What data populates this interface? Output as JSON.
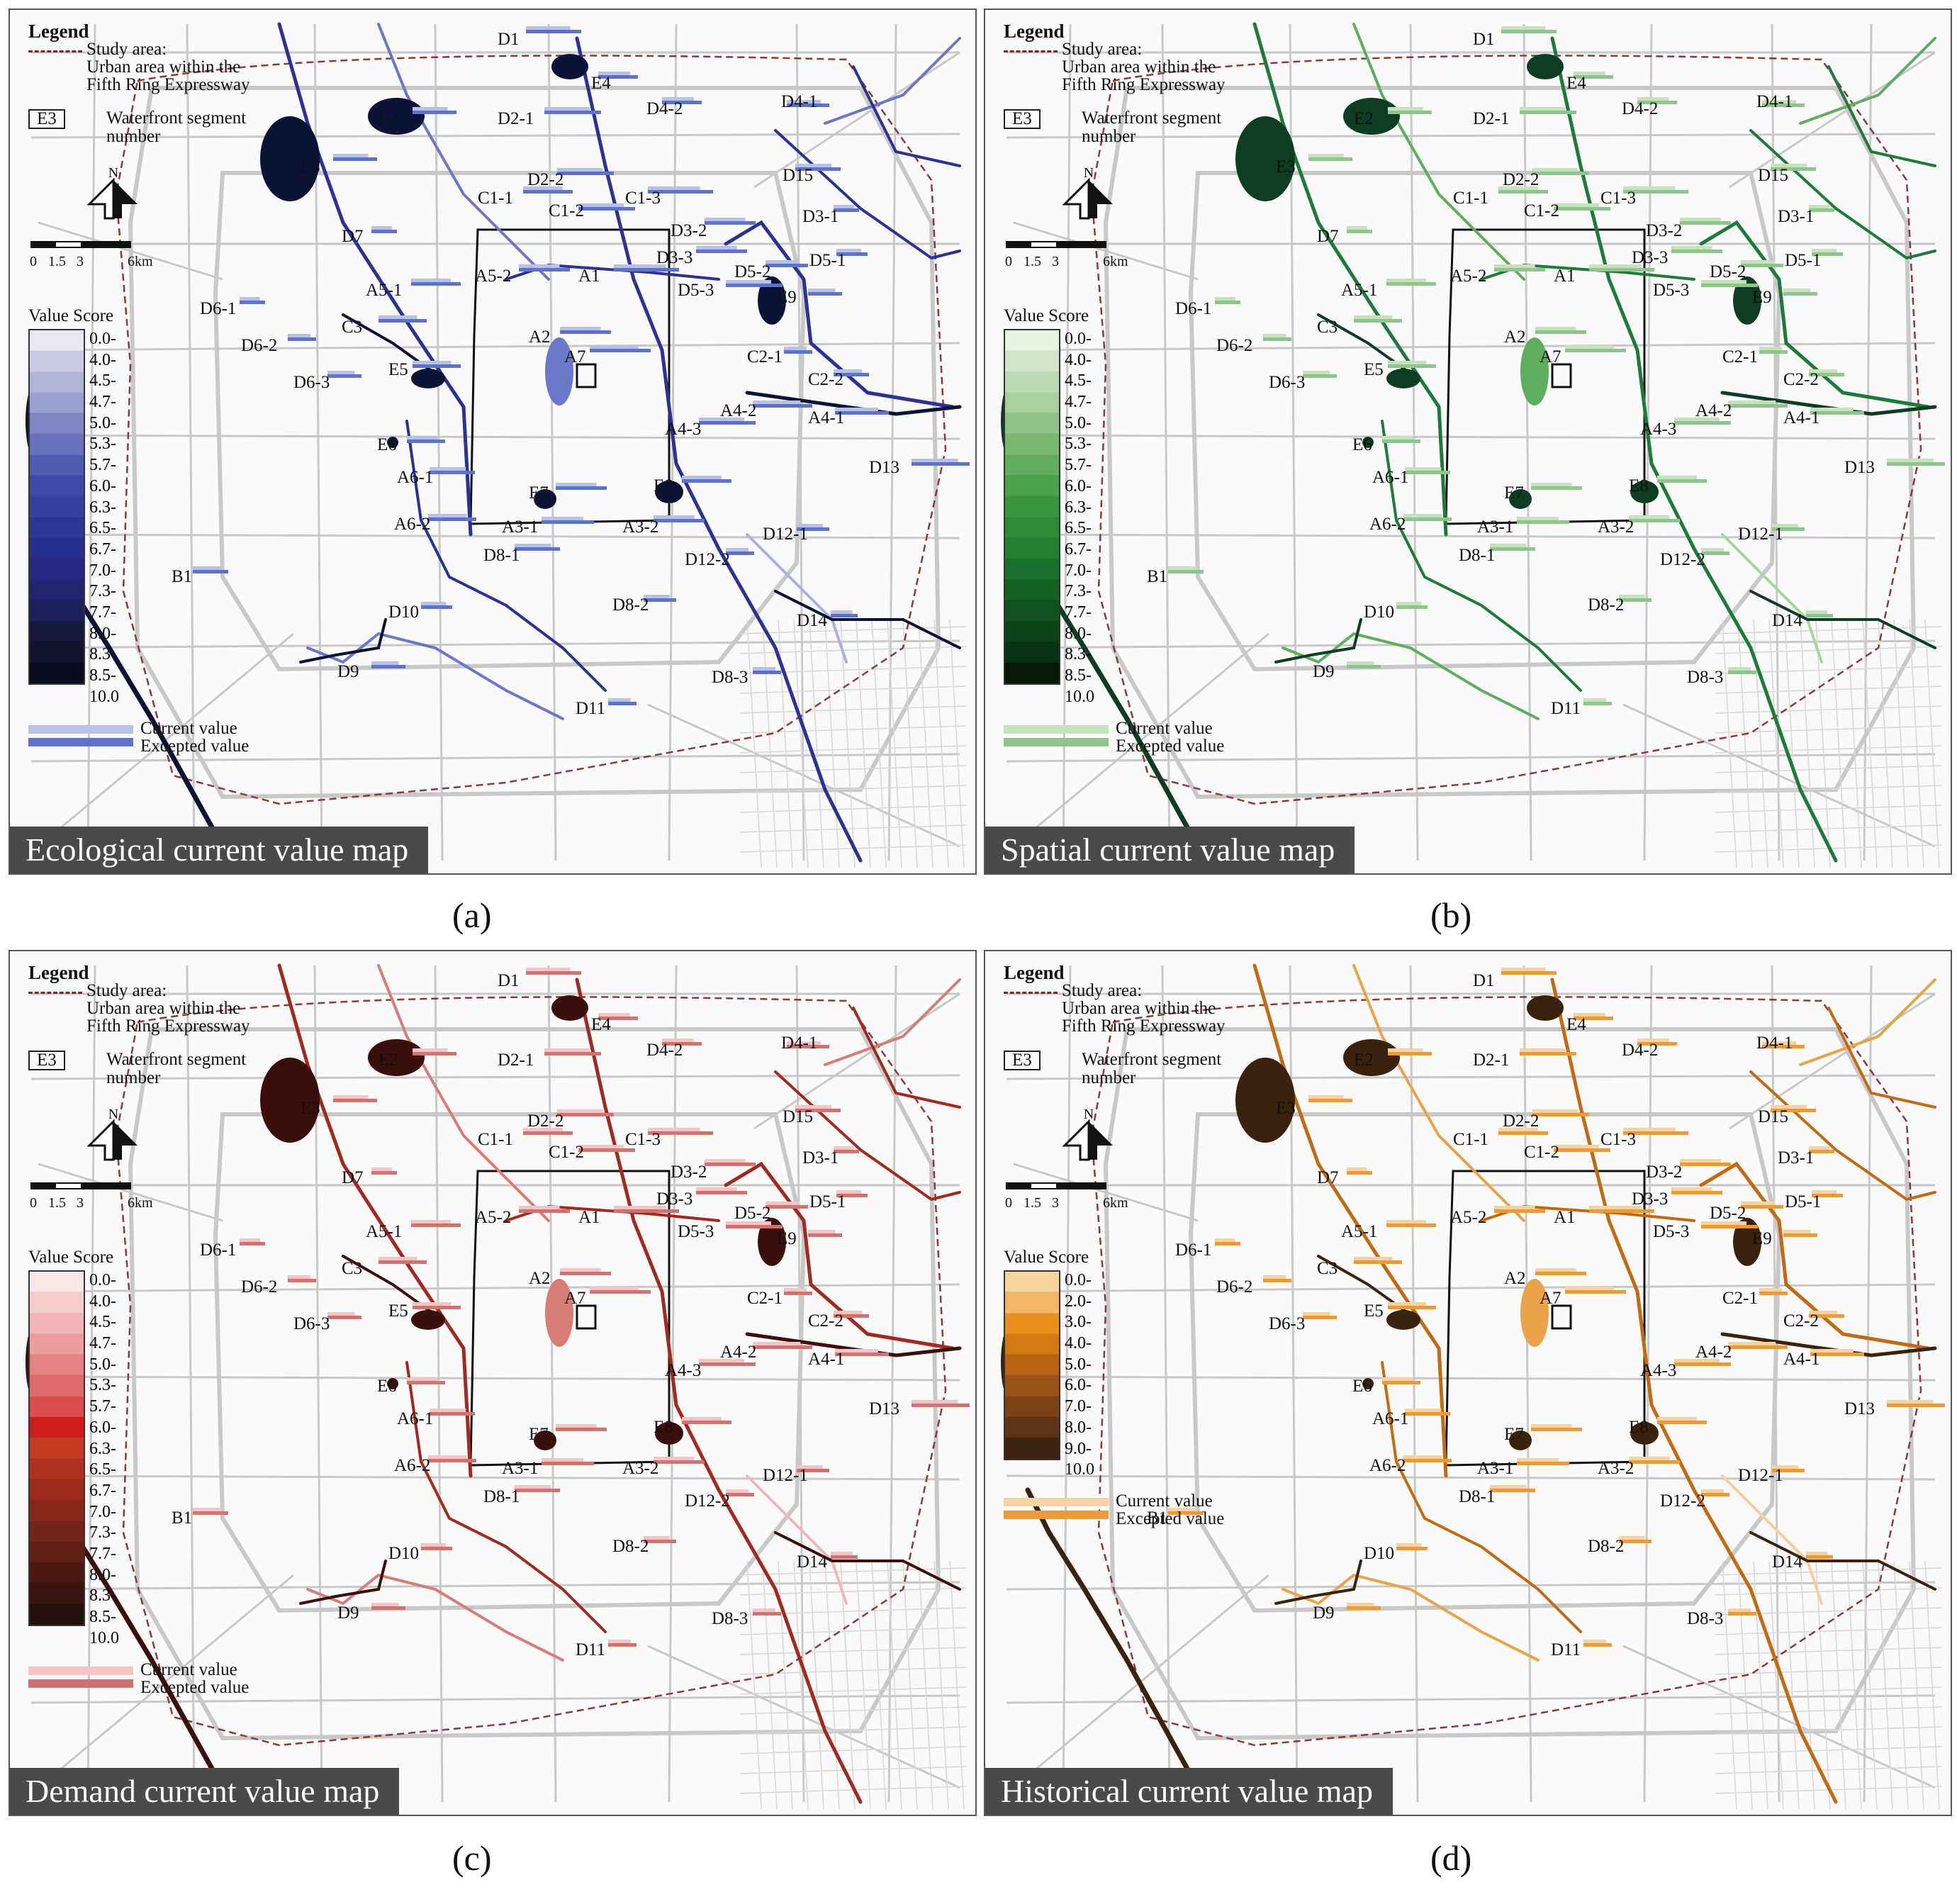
{
  "legend": {
    "heading": "Legend",
    "study_area_line1": "Study area:",
    "study_area_line2": "Urban area within the",
    "study_area_line3": "Fifth Ring Expressway",
    "segment_box": "E3",
    "segment_line1": "Waterfront segment",
    "segment_line2": "number",
    "north": "N",
    "scale_0": "0",
    "scale_1": "1.5",
    "scale_2": "3",
    "scale_3": "6km",
    "value_score": "Value Score",
    "current_value": "Current value",
    "expected_value": "Excepted value"
  },
  "score_classes": [
    "0.0-4.0",
    "4.0-4.5",
    "4.5-4.7",
    "4.7-5.0",
    "5.0-5.3",
    "5.3-5.7",
    "5.7-6.0",
    "6.0-6.3",
    "6.3-6.5",
    "6.5-6.7",
    "6.7-7.0",
    "7.0-7.3",
    "7.3-7.7",
    "7.7-8.0",
    "8.0-8.3",
    "8.3-8.5",
    "8.5-10.0"
  ],
  "historical_classes": [
    "0.0-2.0",
    "2.0-3.0",
    "3.0-4.0",
    "4.0-5.0",
    "5.0-6.0",
    "6.0-7.0",
    "7.0-8.0",
    "8.0-9.0",
    "9.0-10.0"
  ],
  "segment_labels": [
    "D1",
    "E4",
    "D2-1",
    "D4-2",
    "D4-1",
    "E2",
    "E3",
    "D2-2",
    "D15",
    "C1-1",
    "C1-2",
    "C1-3",
    "D3-1",
    "D3-2",
    "D7",
    "D3-3",
    "D5-1",
    "A5-2",
    "A1",
    "D5-2",
    "D5-3",
    "A5-1",
    "E9",
    "D6-1",
    "C3",
    "A2",
    "D6-2",
    "A7",
    "C2-1",
    "E5",
    "D6-3",
    "C2-2",
    "A4-2",
    "A4-1",
    "A4-3",
    "E6",
    "D13",
    "A6-1",
    "E7",
    "E8",
    "A6-2",
    "A3-1",
    "A3-2",
    "D12-1",
    "D8-1",
    "D12-2",
    "B1",
    "D10",
    "D8-2",
    "D14",
    "D9",
    "D8-3",
    "D11"
  ],
  "panels": [
    {
      "id": "a",
      "title": "Ecological current value map",
      "sublabel": "(a)",
      "colors": {
        "dark": "#0c1336",
        "mid": "#2b3290",
        "light": "#6b78c8",
        "pale": "#a9b2de",
        "cur": "#b6c2ea",
        "exp": "#5e72c6"
      },
      "ramp": [
        "#e8e8f2",
        "#c9cbe4",
        "#b1b5da",
        "#9aa0d0",
        "#7f88c5",
        "#6771bd",
        "#4f5ab2",
        "#3d4aaa",
        "#3540a0",
        "#2c3596",
        "#262d8c",
        "#222883",
        "#1f2570",
        "#1c205c",
        "#18193f",
        "#131530",
        "#0a0c20"
      ]
    },
    {
      "id": "b",
      "title": "Spatial current value map",
      "sublabel": "(b)",
      "colors": {
        "dark": "#0f3d24",
        "mid": "#1f7a3a",
        "light": "#5fae5f",
        "pale": "#a8d4a4",
        "cur": "#c5e2bd",
        "exp": "#8fc48c"
      },
      "ramp": [
        "#e6f2e2",
        "#cfe6c9",
        "#bbdbb3",
        "#a6d09d",
        "#90c487",
        "#7ab972",
        "#62ad5d",
        "#4aa14b",
        "#38963f",
        "#2c8b38",
        "#237f32",
        "#1b712b",
        "#156224",
        "#10521d",
        "#0c4317",
        "#083411",
        "#021a07"
      ]
    },
    {
      "id": "c",
      "title": "Demand current value map",
      "sublabel": "(c)",
      "colors": {
        "dark": "#3a0f0c",
        "mid": "#9e2a20",
        "light": "#d87c78",
        "pale": "#f0b8b6",
        "cur": "#f3c6c4",
        "exp": "#cf7270"
      },
      "ramp": [
        "#fbe6e6",
        "#f7cccc",
        "#f2b4b4",
        "#ec9c9c",
        "#e58282",
        "#df6a6a",
        "#d84e4e",
        "#d01e1e",
        "#c43a22",
        "#b03320",
        "#9c2d1e",
        "#88281b",
        "#742318",
        "#601e15",
        "#4c1912",
        "#3a140f",
        "#24100c"
      ]
    },
    {
      "id": "d",
      "title": "Historical current value map",
      "sublabel": "(d)",
      "colors": {
        "dark": "#3a220c",
        "mid": "#c06a14",
        "light": "#e9a34a",
        "pale": "#f4cf9a",
        "cur": "#f6d3a4",
        "exp": "#ec9a38"
      },
      "ramp": [
        "#f7d3a0",
        "#f2b466",
        "#e98f1c",
        "#d47a14",
        "#b86414",
        "#9a5216",
        "#7c4216",
        "#5e3214",
        "#3e2210"
      ]
    }
  ]
}
